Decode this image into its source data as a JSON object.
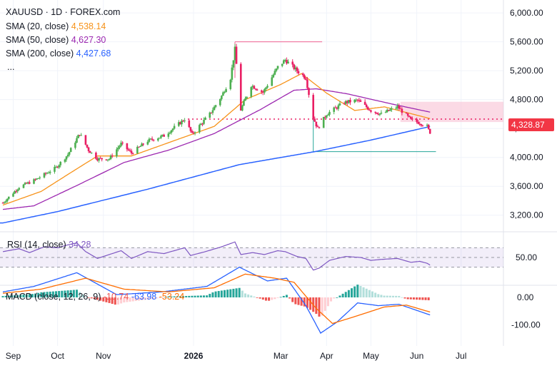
{
  "header": {
    "symbol_line": "XAUUSD · 1D · FOREX.com",
    "more": "...",
    "ma_legend": [
      {
        "name": "SMA (20, close)",
        "value": "4,538.14",
        "color": "#f7931a"
      },
      {
        "name": "SMA (50, close)",
        "value": "4,627.30",
        "color": "#9c27b0"
      },
      {
        "name": "SMA (200, close)",
        "value": "4,427.68",
        "color": "#2962ff"
      }
    ]
  },
  "rsi": {
    "label": "RSI (14, close)",
    "value": "34.28",
    "color": "#7e57c2"
  },
  "macd": {
    "label": "MACD (close, 12, 26, 9)",
    "hist_value": "-10.74",
    "macd_value": "-63.98",
    "signal_value": "-53.24",
    "hist_color": "#ef5350",
    "macd_color": "#2962ff",
    "signal_color": "#ff6d00"
  },
  "price_badge": {
    "value": "4,328.87",
    "color": "#f23645"
  },
  "price_axis": [
    "6,000.00",
    "5,600.00",
    "5,200.00",
    "4,800.00",
    "4,400.00",
    "4,000.00",
    "3,600.00",
    "3,200.00"
  ],
  "rsi_axis": [
    "50.00"
  ],
  "macd_axis": [
    "0.00",
    "-100.00"
  ],
  "time_axis": [
    "Sep",
    "Oct",
    "Nov",
    "2026",
    "Mar",
    "Apr",
    "May",
    "Jun",
    "Jul"
  ],
  "colors": {
    "up": "#4caf50",
    "down": "#e91e63",
    "bg": "#ffffff",
    "grid": "#f0f3fa"
  },
  "chart_data": {
    "type": "candlestick",
    "start_date": "2025-08-25",
    "ylim": [
      3000,
      6100
    ],
    "price_ticks": [
      3200,
      3600,
      4000,
      4400,
      4800,
      5200,
      5600,
      6000
    ],
    "month_ticks": [
      {
        "label": "Sep",
        "date": "2025-09-01"
      },
      {
        "label": "Oct",
        "date": "2025-10-01"
      },
      {
        "label": "Nov",
        "date": "2025-11-01"
      },
      {
        "label": "2026",
        "date": "2026-01-01"
      },
      {
        "label": "Mar",
        "date": "2026-03-01"
      },
      {
        "label": "Apr",
        "date": "2026-04-01"
      },
      {
        "label": "May",
        "date": "2026-05-01"
      },
      {
        "label": "Jun",
        "date": "2026-06-01"
      },
      {
        "label": "Jul",
        "date": "2026-07-01"
      }
    ],
    "close_anchors": [
      [
        "2025-08-25",
        3370
      ],
      [
        "2025-09-05",
        3590
      ],
      [
        "2025-09-16",
        3690
      ],
      [
        "2025-09-30",
        3860
      ],
      [
        "2025-10-08",
        4040
      ],
      [
        "2025-10-16",
        4330
      ],
      [
        "2025-10-22",
        4100
      ],
      [
        "2025-10-28",
        3980
      ],
      [
        "2025-11-05",
        3980
      ],
      [
        "2025-11-13",
        4190
      ],
      [
        "2025-11-20",
        4060
      ],
      [
        "2025-12-01",
        4230
      ],
      [
        "2025-12-12",
        4300
      ],
      [
        "2025-12-26",
        4530
      ],
      [
        "2025-12-31",
        4320
      ],
      [
        "2026-01-12",
        4600
      ],
      [
        "2026-01-20",
        4850
      ],
      [
        "2026-01-26",
        5100
      ],
      [
        "2026-01-29",
        5500
      ],
      [
        "2026-02-02",
        4660
      ],
      [
        "2026-02-09",
        5000
      ],
      [
        "2026-02-17",
        4900
      ],
      [
        "2026-02-27",
        5250
      ],
      [
        "2026-03-04",
        5350
      ],
      [
        "2026-03-12",
        5200
      ],
      [
        "2026-03-18",
        5100
      ],
      [
        "2026-03-23",
        4550
      ],
      [
        "2026-03-26",
        4400
      ],
      [
        "2026-04-01",
        4600
      ],
      [
        "2026-04-13",
        4760
      ],
      [
        "2026-04-22",
        4790
      ],
      [
        "2026-05-01",
        4650
      ],
      [
        "2026-05-08",
        4600
      ],
      [
        "2026-05-19",
        4700
      ],
      [
        "2026-05-28",
        4520
      ],
      [
        "2026-06-03",
        4480
      ],
      [
        "2026-06-08",
        4430
      ],
      [
        "2026-06-10",
        4329
      ]
    ],
    "sma20_anchors": [
      [
        "2025-08-25",
        3340
      ],
      [
        "2025-09-20",
        3530
      ],
      [
        "2025-10-10",
        3790
      ],
      [
        "2025-10-28",
        4020
      ],
      [
        "2025-11-20",
        4020
      ],
      [
        "2025-12-20",
        4240
      ],
      [
        "2026-01-15",
        4430
      ],
      [
        "2026-02-05",
        4800
      ],
      [
        "2026-03-01",
        5010
      ],
      [
        "2026-03-15",
        5160
      ],
      [
        "2026-04-01",
        4890
      ],
      [
        "2026-04-20",
        4650
      ],
      [
        "2026-05-10",
        4700
      ],
      [
        "2026-06-10",
        4538
      ]
    ],
    "sma50_anchors": [
      [
        "2025-08-25",
        3280
      ],
      [
        "2025-09-15",
        3330
      ],
      [
        "2025-10-15",
        3620
      ],
      [
        "2025-11-15",
        3930
      ],
      [
        "2025-12-15",
        4100
      ],
      [
        "2026-01-15",
        4330
      ],
      [
        "2026-02-15",
        4660
      ],
      [
        "2026-03-10",
        4930
      ],
      [
        "2026-03-25",
        4950
      ],
      [
        "2026-04-15",
        4880
      ],
      [
        "2026-05-15",
        4740
      ],
      [
        "2026-06-10",
        4627
      ]
    ],
    "sma200_anchors": [
      [
        "2025-08-15",
        3050
      ],
      [
        "2025-10-01",
        3250
      ],
      [
        "2025-12-01",
        3560
      ],
      [
        "2026-02-01",
        3900
      ],
      [
        "2026-03-24",
        4080
      ],
      [
        "2026-05-01",
        4240
      ],
      [
        "2026-06-10",
        4428
      ]
    ],
    "resistance_zone": {
      "from": "2026-05-21",
      "to": "2026-06-16",
      "low": 4490,
      "high": 4770
    },
    "mid_level": {
      "from": "2026-01-01",
      "to": "2026-06-16",
      "value": 4530
    },
    "high_marker": {
      "from": "2026-01-29",
      "to": "2026-03-29",
      "value": 5600
    },
    "low_marker": {
      "from": "2026-03-23",
      "to": "2026-06-14",
      "value": 4080
    },
    "rsi_anchors": [
      [
        "2025-08-25",
        62
      ],
      [
        "2025-09-05",
        68
      ],
      [
        "2025-09-12",
        60
      ],
      [
        "2025-09-22",
        72
      ],
      [
        "2025-10-01",
        70
      ],
      [
        "2025-10-08",
        76
      ],
      [
        "2025-10-14",
        80
      ],
      [
        "2025-10-20",
        62
      ],
      [
        "2025-10-28",
        48
      ],
      [
        "2025-11-05",
        56
      ],
      [
        "2025-11-13",
        64
      ],
      [
        "2025-11-20",
        48
      ],
      [
        "2025-12-01",
        62
      ],
      [
        "2025-12-12",
        58
      ],
      [
        "2025-12-26",
        70
      ],
      [
        "2025-12-30",
        54
      ],
      [
        "2026-01-09",
        62
      ],
      [
        "2026-01-20",
        72
      ],
      [
        "2026-01-29",
        82
      ],
      [
        "2026-02-02",
        56
      ],
      [
        "2026-02-10",
        60
      ],
      [
        "2026-02-18",
        56
      ],
      [
        "2026-02-27",
        64
      ],
      [
        "2026-03-04",
        62
      ],
      [
        "2026-03-12",
        52
      ],
      [
        "2026-03-18",
        48
      ],
      [
        "2026-03-23",
        24
      ],
      [
        "2026-03-27",
        28
      ],
      [
        "2026-04-03",
        44
      ],
      [
        "2026-04-14",
        52
      ],
      [
        "2026-04-24",
        50
      ],
      [
        "2026-05-01",
        44
      ],
      [
        "2026-05-08",
        46
      ],
      [
        "2026-05-19",
        48
      ],
      [
        "2026-05-28",
        40
      ],
      [
        "2026-06-03",
        42
      ],
      [
        "2026-06-08",
        38
      ],
      [
        "2026-06-10",
        34.28
      ]
    ],
    "macd_anchors": [
      [
        "2025-08-25",
        20
      ],
      [
        "2025-09-15",
        40
      ],
      [
        "2025-10-14",
        90
      ],
      [
        "2025-11-10",
        10
      ],
      [
        "2025-12-10",
        20
      ],
      [
        "2026-01-10",
        40
      ],
      [
        "2026-02-01",
        110
      ],
      [
        "2026-02-20",
        60
      ],
      [
        "2026-03-05",
        70
      ],
      [
        "2026-03-18",
        -30
      ],
      [
        "2026-03-28",
        -130
      ],
      [
        "2026-04-08",
        -90
      ],
      [
        "2026-04-22",
        -20
      ],
      [
        "2026-05-06",
        -30
      ],
      [
        "2026-05-20",
        -25
      ],
      [
        "2026-06-10",
        -63.98
      ]
    ],
    "signal_anchors": [
      [
        "2025-08-25",
        15
      ],
      [
        "2025-09-20",
        30
      ],
      [
        "2025-10-20",
        70
      ],
      [
        "2025-11-15",
        30
      ],
      [
        "2025-12-15",
        20
      ],
      [
        "2026-01-15",
        35
      ],
      [
        "2026-02-05",
        85
      ],
      [
        "2026-02-25",
        70
      ],
      [
        "2026-03-10",
        55
      ],
      [
        "2026-03-25",
        -40
      ],
      [
        "2026-04-05",
        -95
      ],
      [
        "2026-04-20",
        -70
      ],
      [
        "2026-05-10",
        -35
      ],
      [
        "2026-05-25",
        -28
      ],
      [
        "2026-06-10",
        -53.24
      ]
    ]
  }
}
